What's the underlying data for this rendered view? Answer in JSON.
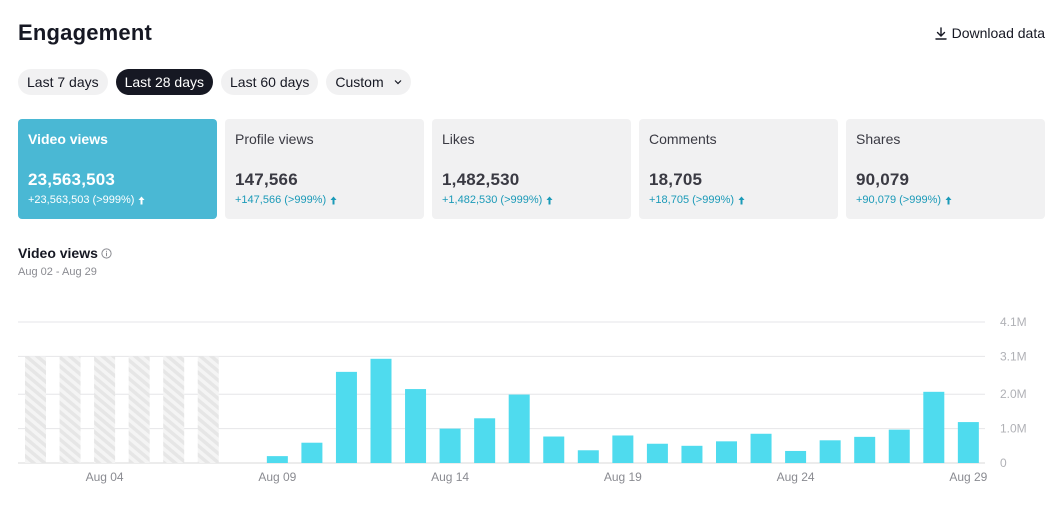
{
  "header": {
    "title": "Engagement",
    "download_label": "Download data",
    "download_icon": "download-icon"
  },
  "range_tabs": [
    {
      "label": "Last 7 days",
      "active": false
    },
    {
      "label": "Last 28 days",
      "active": true
    },
    {
      "label": "Last 60 days",
      "active": false
    },
    {
      "label": "Custom",
      "active": false,
      "icon": "chevron-down-icon"
    }
  ],
  "metrics": [
    {
      "label": "Video views",
      "value": "23,563,503",
      "delta": "+23,563,503 (>999%)",
      "active": true
    },
    {
      "label": "Profile views",
      "value": "147,566",
      "delta": "+147,566 (>999%)",
      "active": false
    },
    {
      "label": "Likes",
      "value": "1,482,530",
      "delta": "+1,482,530 (>999%)",
      "active": false
    },
    {
      "label": "Comments",
      "value": "18,705",
      "delta": "+18,705 (>999%)",
      "active": false
    },
    {
      "label": "Shares",
      "value": "90,079",
      "delta": "+90,079 (>999%)",
      "active": false
    }
  ],
  "colors": {
    "accent": "#4ab8d4",
    "bar": "#4fdbee",
    "positive_delta": "#1b9ab8",
    "no_data_hatch": "#ededed"
  },
  "chart_section": {
    "title": "Video views",
    "info_icon": "info-icon",
    "date_range": "Aug 02 - Aug 29"
  },
  "chart_data": {
    "type": "bar",
    "categories": [
      "Aug 02",
      "Aug 03",
      "Aug 04",
      "Aug 05",
      "Aug 06",
      "Aug 07",
      "Aug 08",
      "Aug 09",
      "Aug 10",
      "Aug 11",
      "Aug 12",
      "Aug 13",
      "Aug 14",
      "Aug 15",
      "Aug 16",
      "Aug 17",
      "Aug 18",
      "Aug 19",
      "Aug 20",
      "Aug 21",
      "Aug 22",
      "Aug 23",
      "Aug 24",
      "Aug 25",
      "Aug 26",
      "Aug 27",
      "Aug 28",
      "Aug 29"
    ],
    "values": [
      null,
      null,
      null,
      null,
      null,
      null,
      0,
      200000,
      590000,
      2650000,
      3030000,
      2150000,
      1000000,
      1300000,
      1990000,
      770000,
      370000,
      800000,
      560000,
      500000,
      630000,
      850000,
      350000,
      660000,
      760000,
      970000,
      2070000,
      1190000
    ],
    "no_data_days": [
      "Aug 02",
      "Aug 03",
      "Aug 04",
      "Aug 05",
      "Aug 06",
      "Aug 07"
    ],
    "x_tick_labels": [
      "Aug 04",
      "Aug 09",
      "Aug 14",
      "Aug 19",
      "Aug 24",
      "Aug 29"
    ],
    "y_ticks": [
      {
        "value": 0,
        "label": "0"
      },
      {
        "value": 1000000,
        "label": "1.0M"
      },
      {
        "value": 2000000,
        "label": "2.0M"
      },
      {
        "value": 3100000,
        "label": "3.1M"
      },
      {
        "value": 4100000,
        "label": "4.1M"
      }
    ],
    "ylim": [
      0,
      4100000
    ],
    "grid": true,
    "y_axis_position": "right",
    "title": "Video views",
    "xlabel": "",
    "ylabel": ""
  }
}
